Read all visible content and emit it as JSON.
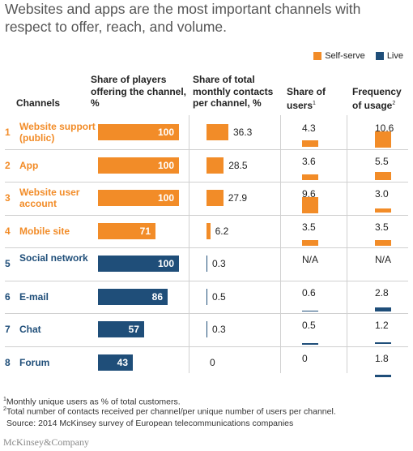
{
  "title": "Websites and apps are the most important channels with respect to offer, reach, and volume.",
  "legend": [
    {
      "label": "Self-serve",
      "color": "#f28c28"
    },
    {
      "label": "Live",
      "color": "#1f4e79"
    }
  ],
  "headers": {
    "channels": "Channels",
    "share_players": "Share of players offering the channel, %",
    "share_contacts": "Share of total monthly contacts per channel, %",
    "share_users": "Share of users",
    "share_users_sup": "1",
    "frequency": "Frequency of usage",
    "frequency_sup": "2"
  },
  "chart_data": {
    "type": "table",
    "columns": [
      "Share of players offering the channel, %",
      "Share of total monthly contacts per channel, %",
      "Share of users",
      "Frequency of usage"
    ],
    "rows": [
      {
        "num": "1",
        "channel": "Website support (public)",
        "group": "Self-serve",
        "players": 100,
        "players_label": "100",
        "contacts": 36.3,
        "contacts_label": "36.3",
        "users": 4.3,
        "users_label": "4.3",
        "freq": 10.6,
        "freq_label": "10.6"
      },
      {
        "num": "2",
        "channel": "App",
        "group": "Self-serve",
        "players": 100,
        "players_label": "100",
        "contacts": 28.5,
        "contacts_label": "28.5",
        "users": 3.6,
        "users_label": "3.6",
        "freq": 5.5,
        "freq_label": "5.5"
      },
      {
        "num": "3",
        "channel": "Website user account",
        "group": "Self-serve",
        "players": 100,
        "players_label": "100",
        "contacts": 27.9,
        "contacts_label": "27.9",
        "users": 9.6,
        "users_label": "9.6",
        "freq": 3.0,
        "freq_label": "3.0"
      },
      {
        "num": "4",
        "channel": "Mobile site",
        "group": "Self-serve",
        "players": 71,
        "players_label": "71",
        "contacts": 6.2,
        "contacts_label": "6.2",
        "users": 3.5,
        "users_label": "3.5",
        "freq": 3.5,
        "freq_label": "3.5"
      },
      {
        "num": "5",
        "channel": "Social network",
        "group": "Live",
        "players": 100,
        "players_label": "100",
        "contacts": 0.3,
        "contacts_label": "0.3",
        "users": null,
        "users_label": "N/A",
        "freq": null,
        "freq_label": "N/A"
      },
      {
        "num": "6",
        "channel": "E-mail",
        "group": "Live",
        "players": 86,
        "players_label": "86",
        "contacts": 0.5,
        "contacts_label": "0.5",
        "users": 0.6,
        "users_label": "0.6",
        "freq": 2.8,
        "freq_label": "2.8"
      },
      {
        "num": "7",
        "channel": "Chat",
        "group": "Live",
        "players": 57,
        "players_label": "57",
        "contacts": 0.3,
        "contacts_label": "0.3",
        "users": 0.5,
        "users_label": "0.5",
        "freq": 1.2,
        "freq_label": "1.2"
      },
      {
        "num": "8",
        "channel": "Forum",
        "group": "Live",
        "players": 43,
        "players_label": "43",
        "contacts": 0,
        "contacts_label": "0",
        "users": 0,
        "users_label": "0",
        "freq": 1.8,
        "freq_label": "1.8"
      }
    ]
  },
  "footnotes": [
    {
      "sup": "1",
      "text": "Monthly unique users as % of total customers."
    },
    {
      "sup": "2",
      "text": "Total number of contacts received per channel/per unique number of users per channel."
    }
  ],
  "source": "Source: 2014 McKinsey survey of European telecommunications companies",
  "logo": "McKinsey&Company"
}
